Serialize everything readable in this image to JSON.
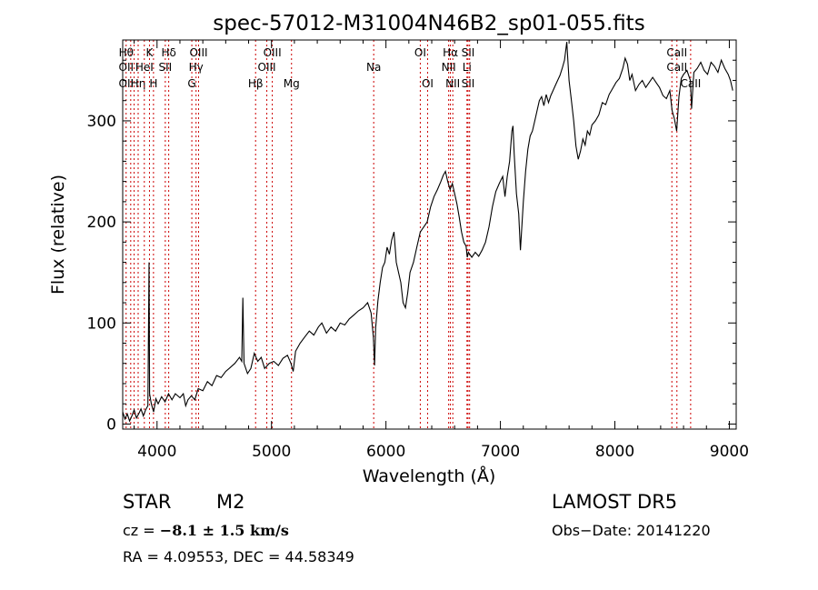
{
  "chart_data": {
    "type": "line",
    "title": "spec-57012-M31004N46B2_sp01-055.fits",
    "xlabel": "Wavelength (Å)",
    "ylabel": "Flux (relative)",
    "xlim": [
      3700,
      9060
    ],
    "ylim": [
      -5,
      380
    ],
    "xticks": [
      4000,
      5000,
      6000,
      7000,
      8000,
      9000
    ],
    "yticks": [
      0,
      100,
      200,
      300
    ],
    "grid": false,
    "line_color": "#000000",
    "marker_color": "#cc0000",
    "series": [
      {
        "values": [
          [
            3700,
            12
          ],
          [
            3720,
            5
          ],
          [
            3740,
            10
          ],
          [
            3760,
            3
          ],
          [
            3780,
            8
          ],
          [
            3800,
            14
          ],
          [
            3820,
            6
          ],
          [
            3840,
            10
          ],
          [
            3860,
            15
          ],
          [
            3880,
            8
          ],
          [
            3900,
            14
          ],
          [
            3920,
            18
          ],
          [
            3930,
            160
          ],
          [
            3935,
            30
          ],
          [
            3950,
            20
          ],
          [
            3970,
            12
          ],
          [
            3990,
            25
          ],
          [
            4010,
            20
          ],
          [
            4040,
            27
          ],
          [
            4070,
            22
          ],
          [
            4100,
            30
          ],
          [
            4130,
            24
          ],
          [
            4160,
            30
          ],
          [
            4200,
            26
          ],
          [
            4230,
            30
          ],
          [
            4250,
            18
          ],
          [
            4270,
            24
          ],
          [
            4300,
            28
          ],
          [
            4330,
            24
          ],
          [
            4360,
            35
          ],
          [
            4400,
            33
          ],
          [
            4440,
            42
          ],
          [
            4480,
            38
          ],
          [
            4520,
            48
          ],
          [
            4560,
            46
          ],
          [
            4600,
            52
          ],
          [
            4640,
            56
          ],
          [
            4680,
            60
          ],
          [
            4720,
            66
          ],
          [
            4740,
            62
          ],
          [
            4750,
            125
          ],
          [
            4760,
            60
          ],
          [
            4790,
            50
          ],
          [
            4820,
            55
          ],
          [
            4850,
            70
          ],
          [
            4880,
            62
          ],
          [
            4910,
            66
          ],
          [
            4940,
            55
          ],
          [
            4980,
            60
          ],
          [
            5020,
            62
          ],
          [
            5060,
            58
          ],
          [
            5100,
            65
          ],
          [
            5140,
            68
          ],
          [
            5170,
            60
          ],
          [
            5190,
            52
          ],
          [
            5210,
            72
          ],
          [
            5250,
            80
          ],
          [
            5290,
            86
          ],
          [
            5330,
            92
          ],
          [
            5370,
            88
          ],
          [
            5410,
            96
          ],
          [
            5440,
            100
          ],
          [
            5480,
            90
          ],
          [
            5520,
            96
          ],
          [
            5560,
            92
          ],
          [
            5600,
            100
          ],
          [
            5640,
            98
          ],
          [
            5680,
            104
          ],
          [
            5720,
            108
          ],
          [
            5760,
            112
          ],
          [
            5800,
            115
          ],
          [
            5840,
            120
          ],
          [
            5870,
            110
          ],
          [
            5890,
            86
          ],
          [
            5900,
            58
          ],
          [
            5910,
            95
          ],
          [
            5930,
            122
          ],
          [
            5950,
            140
          ],
          [
            5970,
            155
          ],
          [
            5990,
            160
          ],
          [
            6010,
            175
          ],
          [
            6030,
            168
          ],
          [
            6050,
            182
          ],
          [
            6070,
            190
          ],
          [
            6090,
            160
          ],
          [
            6110,
            150
          ],
          [
            6130,
            140
          ],
          [
            6150,
            120
          ],
          [
            6170,
            115
          ],
          [
            6190,
            130
          ],
          [
            6210,
            150
          ],
          [
            6240,
            160
          ],
          [
            6270,
            175
          ],
          [
            6300,
            190
          ],
          [
            6330,
            195
          ],
          [
            6360,
            200
          ],
          [
            6390,
            215
          ],
          [
            6420,
            225
          ],
          [
            6450,
            232
          ],
          [
            6480,
            240
          ],
          [
            6500,
            246
          ],
          [
            6520,
            250
          ],
          [
            6540,
            240
          ],
          [
            6560,
            232
          ],
          [
            6580,
            238
          ],
          [
            6600,
            228
          ],
          [
            6620,
            218
          ],
          [
            6640,
            205
          ],
          [
            6660,
            190
          ],
          [
            6680,
            180
          ],
          [
            6700,
            176
          ],
          [
            6710,
            165
          ],
          [
            6720,
            170
          ],
          [
            6750,
            165
          ],
          [
            6780,
            170
          ],
          [
            6810,
            166
          ],
          [
            6840,
            172
          ],
          [
            6870,
            180
          ],
          [
            6900,
            195
          ],
          [
            6930,
            215
          ],
          [
            6960,
            230
          ],
          [
            6990,
            238
          ],
          [
            7020,
            245
          ],
          [
            7040,
            225
          ],
          [
            7060,
            245
          ],
          [
            7080,
            260
          ],
          [
            7100,
            290
          ],
          [
            7110,
            295
          ],
          [
            7120,
            268
          ],
          [
            7140,
            228
          ],
          [
            7160,
            208
          ],
          [
            7175,
            172
          ],
          [
            7200,
            220
          ],
          [
            7220,
            250
          ],
          [
            7240,
            272
          ],
          [
            7260,
            285
          ],
          [
            7280,
            290
          ],
          [
            7300,
            300
          ],
          [
            7320,
            310
          ],
          [
            7340,
            320
          ],
          [
            7360,
            324
          ],
          [
            7380,
            315
          ],
          [
            7400,
            326
          ],
          [
            7420,
            318
          ],
          [
            7440,
            325
          ],
          [
            7460,
            330
          ],
          [
            7480,
            335
          ],
          [
            7500,
            340
          ],
          [
            7520,
            345
          ],
          [
            7540,
            352
          ],
          [
            7560,
            360
          ],
          [
            7580,
            378
          ],
          [
            7600,
            340
          ],
          [
            7620,
            320
          ],
          [
            7640,
            300
          ],
          [
            7660,
            275
          ],
          [
            7680,
            262
          ],
          [
            7700,
            270
          ],
          [
            7720,
            282
          ],
          [
            7740,
            276
          ],
          [
            7760,
            290
          ],
          [
            7780,
            286
          ],
          [
            7800,
            296
          ],
          [
            7830,
            300
          ],
          [
            7860,
            306
          ],
          [
            7890,
            318
          ],
          [
            7920,
            316
          ],
          [
            7950,
            326
          ],
          [
            7980,
            332
          ],
          [
            8010,
            338
          ],
          [
            8040,
            342
          ],
          [
            8070,
            352
          ],
          [
            8090,
            362
          ],
          [
            8110,
            356
          ],
          [
            8130,
            340
          ],
          [
            8150,
            346
          ],
          [
            8180,
            330
          ],
          [
            8210,
            336
          ],
          [
            8240,
            340
          ],
          [
            8270,
            333
          ],
          [
            8300,
            338
          ],
          [
            8330,
            343
          ],
          [
            8360,
            338
          ],
          [
            8390,
            333
          ],
          [
            8420,
            325
          ],
          [
            8450,
            322
          ],
          [
            8480,
            330
          ],
          [
            8500,
            310
          ],
          [
            8520,
            302
          ],
          [
            8540,
            290
          ],
          [
            8560,
            324
          ],
          [
            8580,
            342
          ],
          [
            8600,
            346
          ],
          [
            8630,
            350
          ],
          [
            8660,
            340
          ],
          [
            8670,
            312
          ],
          [
            8690,
            348
          ],
          [
            8720,
            352
          ],
          [
            8750,
            358
          ],
          [
            8780,
            350
          ],
          [
            8810,
            346
          ],
          [
            8840,
            358
          ],
          [
            8870,
            354
          ],
          [
            8900,
            348
          ],
          [
            8930,
            360
          ],
          [
            8960,
            352
          ],
          [
            8990,
            346
          ],
          [
            9010,
            340
          ],
          [
            9030,
            330
          ]
        ]
      }
    ],
    "lines": [
      {
        "wave": 3730,
        "labels": [
          "Hθ",
          "OII",
          "OII"
        ]
      },
      {
        "wave": 3770,
        "labels": [
          "",
          "",
          ""
        ]
      },
      {
        "wave": 3800,
        "labels": [
          "",
          "",
          ""
        ]
      },
      {
        "wave": 3835,
        "labels": [
          "",
          "",
          "Hη"
        ]
      },
      {
        "wave": 3889,
        "labels": [
          "",
          "HeI",
          ""
        ]
      },
      {
        "wave": 3934,
        "labels": [
          "K",
          "",
          ""
        ]
      },
      {
        "wave": 3969,
        "labels": [
          "",
          "",
          "H"
        ]
      },
      {
        "wave": 4072,
        "labels": [
          "",
          "SII",
          ""
        ]
      },
      {
        "wave": 4102,
        "labels": [
          "Hδ",
          "",
          ""
        ]
      },
      {
        "wave": 4304,
        "labels": [
          "",
          "",
          "G"
        ]
      },
      {
        "wave": 4341,
        "labels": [
          "",
          "Hγ",
          ""
        ]
      },
      {
        "wave": 4363,
        "labels": [
          "OIII",
          "",
          ""
        ]
      },
      {
        "wave": 4861,
        "labels": [
          "",
          "",
          "Hβ"
        ]
      },
      {
        "wave": 4959,
        "labels": [
          "",
          "OIII",
          ""
        ]
      },
      {
        "wave": 5007,
        "labels": [
          "OIII",
          "",
          ""
        ]
      },
      {
        "wave": 5175,
        "labels": [
          "",
          "",
          "Mg"
        ]
      },
      {
        "wave": 5893,
        "labels": [
          "",
          "Na",
          ""
        ]
      },
      {
        "wave": 6300,
        "labels": [
          "OI",
          "",
          ""
        ]
      },
      {
        "wave": 6364,
        "labels": [
          "",
          "",
          "OI"
        ]
      },
      {
        "wave": 6548,
        "labels": [
          "",
          "NII",
          ""
        ]
      },
      {
        "wave": 6563,
        "labels": [
          "Hα",
          "",
          ""
        ]
      },
      {
        "wave": 6584,
        "labels": [
          "",
          "",
          "NII"
        ]
      },
      {
        "wave": 6708,
        "labels": [
          "",
          "Li",
          ""
        ]
      },
      {
        "wave": 6717,
        "labels": [
          "SII",
          "",
          "SII"
        ]
      },
      {
        "wave": 6731,
        "labels": [
          "",
          "",
          ""
        ]
      },
      {
        "wave": 8498,
        "labels": [
          "",
          "",
          ""
        ]
      },
      {
        "wave": 8542,
        "labels": [
          "CaII",
          "CaII",
          ""
        ]
      },
      {
        "wave": 8662,
        "labels": [
          "",
          "",
          "CaII"
        ]
      }
    ]
  },
  "info": {
    "class": "STAR",
    "subclass": "M2",
    "survey": "LAMOST  DR5",
    "cz_prefix": "cz  =  ",
    "cz": "−8.1  ±  1.5  km/s",
    "obs_date": "Obs−Date:  20141220",
    "coords": "RA  =    4.09553,  DEC  =   44.58349"
  }
}
